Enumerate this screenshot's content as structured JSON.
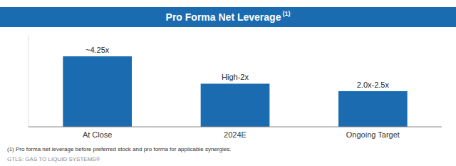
{
  "chart_data": {
    "type": "bar",
    "title": "Pro Forma Net Leverage",
    "categories": [
      "At Close",
      "2024E",
      "Ongoing Target"
    ],
    "values": [
      4.25,
      2.6,
      2.15
    ],
    "value_labels": [
      "~4.25x",
      "High-2x",
      "2.0x-2.5x"
    ],
    "data_labels": true,
    "color": "#1B6BB0",
    "ylim": [
      0,
      5.5
    ],
    "grid": false,
    "tick_labels": "x",
    "annotations": [
      "(1)",
      "(1)   Pro forma net leverage before preferred stock and pro forma for applicable synergies.",
      "GTLS: GAS TO LIQUID SYSTEMS®"
    ]
  }
}
